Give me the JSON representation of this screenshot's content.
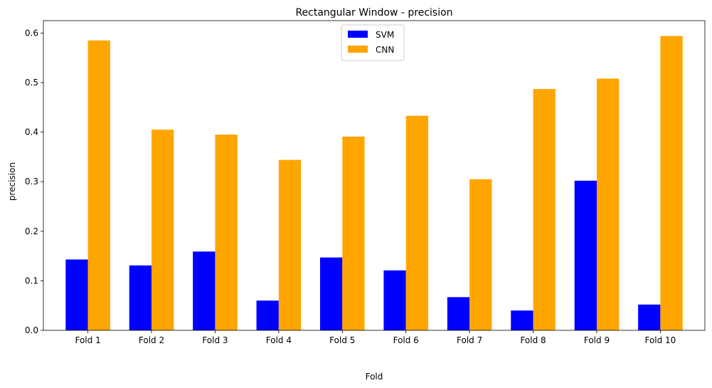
{
  "chart_data": {
    "type": "bar",
    "title": "Rectangular Window - precision",
    "xlabel": "Fold",
    "ylabel": "precision",
    "categories": [
      "Fold 1",
      "Fold 2",
      "Fold 3",
      "Fold 4",
      "Fold 5",
      "Fold 6",
      "Fold 7",
      "Fold 8",
      "Fold 9",
      "Fold 10"
    ],
    "series": [
      {
        "name": "SVM",
        "color": "#0000ff",
        "values": [
          0.143,
          0.131,
          0.159,
          0.06,
          0.147,
          0.121,
          0.067,
          0.04,
          0.302,
          0.052
        ]
      },
      {
        "name": "CNN",
        "color": "#ffa500",
        "values": [
          0.585,
          0.405,
          0.395,
          0.344,
          0.391,
          0.433,
          0.305,
          0.487,
          0.508,
          0.594
        ]
      }
    ],
    "ylim": [
      0,
      0.625
    ],
    "yticks": [
      0.0,
      0.1,
      0.2,
      0.3,
      0.4,
      0.5,
      0.6
    ],
    "ytick_labels": [
      "0.0",
      "0.1",
      "0.2",
      "0.3",
      "0.4",
      "0.5",
      "0.6"
    ],
    "grid": false,
    "legend_position": "top-center"
  }
}
